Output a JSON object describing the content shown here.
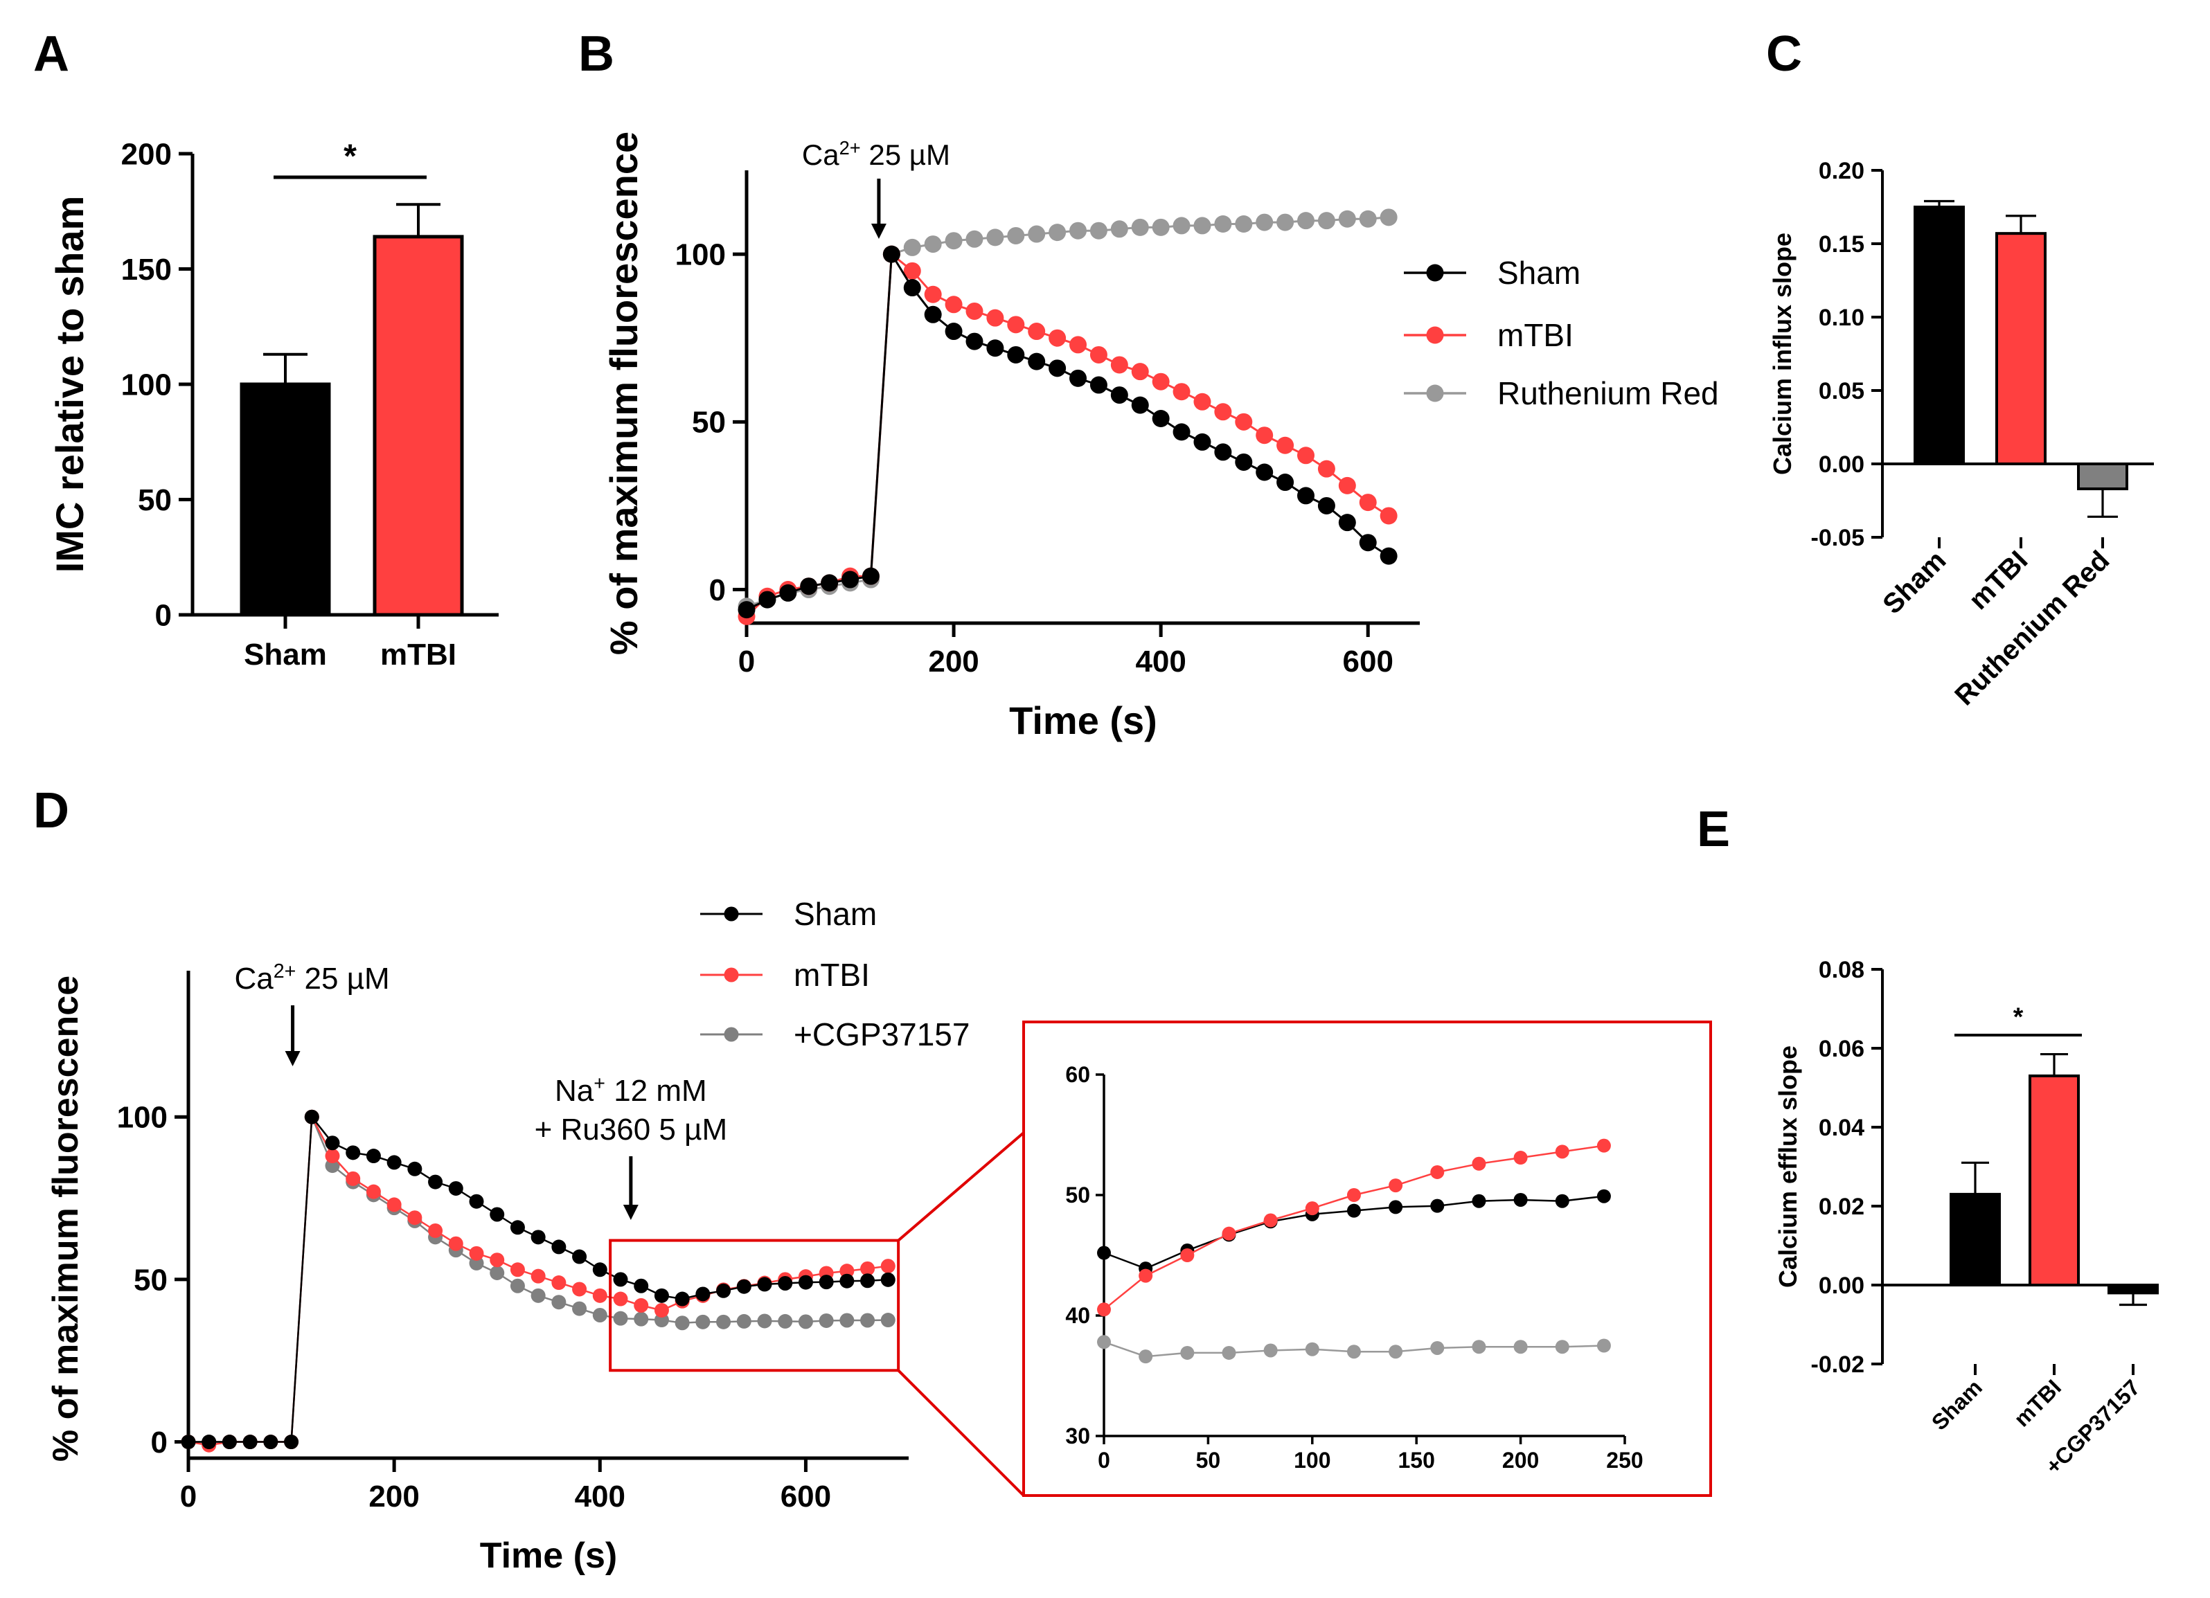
{
  "colors": {
    "sham": "#000000",
    "mtbi": "#ff4040",
    "grey": "#999999",
    "grey_dark": "#808080",
    "zoom": "#e00000"
  },
  "panels": [
    "A",
    "B",
    "C",
    "D",
    "E"
  ],
  "chart_data": [
    {
      "id": "A",
      "type": "bar",
      "ylabel": "IMC relative to sham",
      "categories": [
        "Sham",
        "mTBI"
      ],
      "values": [
        100,
        164
      ],
      "errors": [
        13,
        14
      ],
      "ylim": [
        0,
        200
      ],
      "yticks": [
        "0",
        "50",
        "100",
        "150",
        "200"
      ],
      "significance": "*"
    },
    {
      "id": "B",
      "type": "line",
      "xlabel": "Time (s)",
      "ylabel": "% of maximum fluorescence",
      "xlim": [
        0,
        650
      ],
      "ylim": [
        -10,
        125
      ],
      "xticks": [
        "0",
        "200",
        "400",
        "600"
      ],
      "yticks": [
        "0",
        "50",
        "100"
      ],
      "annotation": {
        "base": "Ca",
        "sup": "2+",
        "rest": " 25 µM",
        "x": 125
      },
      "series": [
        {
          "name": "Sham",
          "color_key": "sham",
          "x": [
            0,
            20,
            40,
            60,
            80,
            100,
            120,
            140,
            160,
            180,
            200,
            220,
            240,
            260,
            280,
            300,
            320,
            340,
            360,
            380,
            400,
            420,
            440,
            460,
            480,
            500,
            520,
            540,
            560,
            580,
            600,
            620
          ],
          "y": [
            -6,
            -3,
            -1,
            1,
            2,
            3,
            4,
            100,
            90,
            82,
            77,
            74,
            72,
            70,
            68,
            66,
            63,
            61,
            58,
            55,
            51,
            47,
            44,
            41,
            38,
            35,
            32,
            28,
            25,
            20,
            14,
            10
          ]
        },
        {
          "name": "mTBI",
          "color_key": "mtbi",
          "x": [
            0,
            20,
            40,
            60,
            80,
            100,
            120,
            140,
            160,
            180,
            200,
            220,
            240,
            260,
            280,
            300,
            320,
            340,
            360,
            380,
            400,
            420,
            440,
            460,
            480,
            500,
            520,
            540,
            560,
            580,
            600,
            620
          ],
          "y": [
            -8,
            -2,
            0,
            1,
            2,
            4,
            4,
            100,
            95,
            88,
            85,
            83,
            81,
            79,
            77,
            75,
            73,
            70,
            67,
            65,
            62,
            59,
            56,
            53,
            50,
            46,
            43,
            40,
            36,
            31,
            26,
            22
          ]
        },
        {
          "name": "Ruthenium Red",
          "color_key": "grey",
          "x": [
            0,
            20,
            40,
            60,
            80,
            100,
            120,
            140,
            160,
            180,
            200,
            220,
            240,
            260,
            280,
            300,
            320,
            340,
            360,
            380,
            400,
            420,
            440,
            460,
            480,
            500,
            520,
            540,
            560,
            580,
            600,
            620
          ],
          "y": [
            -5,
            -3,
            -1,
            0,
            1,
            2,
            3,
            100,
            102,
            103,
            104,
            104.5,
            105,
            105.5,
            106,
            106.5,
            107,
            107,
            107.5,
            108,
            108,
            108.5,
            108.5,
            109,
            109,
            109.5,
            109.5,
            110,
            110,
            110.5,
            110.5,
            111
          ]
        }
      ]
    },
    {
      "id": "C",
      "type": "bar",
      "ylabel": "Calcium influx slope",
      "categories": [
        "Sham",
        "mTBI",
        "Ruthenium Red"
      ],
      "values": [
        0.175,
        0.157,
        -0.017
      ],
      "errors": [
        0.004,
        0.012,
        0.019
      ],
      "ylim": [
        -0.05,
        0.2
      ],
      "yticks": [
        "-0.05",
        "0.00",
        "0.05",
        "0.10",
        "0.15",
        "0.20"
      ]
    },
    {
      "id": "D",
      "type": "line",
      "xlabel": "Time (s)",
      "ylabel": "% of maximum fluorescence",
      "xlim": [
        0,
        700
      ],
      "ylim": [
        -5,
        145
      ],
      "xticks": [
        "0",
        "200",
        "400",
        "600"
      ],
      "yticks": [
        "0",
        "50",
        "100"
      ],
      "annotations": [
        {
          "lines": [
            {
              "base": "Ca",
              "sup": "2+",
              "rest": " 25 µM"
            }
          ],
          "x": 100
        },
        {
          "lines": [
            {
              "base": "Na",
              "sup": "+",
              "rest": " 12 mM"
            },
            {
              "base": "+ Ru360 5 µM",
              "sup": "",
              "rest": ""
            }
          ],
          "x": 430
        }
      ],
      "series": [
        {
          "name": "Sham",
          "color_key": "sham",
          "x": [
            0,
            20,
            40,
            60,
            80,
            100,
            120,
            140,
            160,
            180,
            200,
            220,
            240,
            260,
            280,
            300,
            320,
            340,
            360,
            380,
            400,
            420,
            440,
            460,
            480,
            500,
            520,
            540,
            560,
            580,
            600,
            620,
            640,
            660,
            680
          ],
          "y": [
            0,
            0,
            0,
            0,
            0,
            0,
            100,
            92,
            89,
            88,
            86,
            84,
            80,
            78,
            74,
            70,
            66,
            63,
            60,
            57,
            53,
            50,
            48,
            45,
            44,
            45.5,
            46.5,
            47.8,
            48.5,
            48.8,
            49.1,
            49.2,
            49.5,
            49.6,
            49.9
          ]
        },
        {
          "name": "mTBI",
          "color_key": "mtbi",
          "x": [
            0,
            20,
            40,
            60,
            80,
            100,
            120,
            140,
            160,
            180,
            200,
            220,
            240,
            260,
            280,
            300,
            320,
            340,
            360,
            380,
            400,
            420,
            440,
            460,
            480,
            500,
            520,
            540,
            560,
            580,
            600,
            620,
            640,
            660,
            680
          ],
          "y": [
            0,
            -1,
            0,
            0,
            0,
            0,
            100,
            88,
            81,
            77,
            73,
            69,
            65,
            61,
            58,
            56,
            53,
            51,
            49,
            47,
            45,
            44,
            42,
            40.5,
            43.3,
            45,
            46.8,
            47.9,
            48.9,
            50,
            50.9,
            51.9,
            52.6,
            53.3,
            54.1
          ]
        },
        {
          "name": "+CGP37157",
          "color_key": "grey_dark",
          "x": [
            0,
            20,
            40,
            60,
            80,
            100,
            120,
            140,
            160,
            180,
            200,
            220,
            240,
            260,
            280,
            300,
            320,
            340,
            360,
            380,
            400,
            420,
            440,
            460,
            480,
            500,
            520,
            540,
            560,
            580,
            600,
            620,
            640,
            660,
            680
          ],
          "y": [
            0,
            0,
            0,
            0,
            0,
            0,
            100,
            85,
            80,
            76,
            72,
            68,
            63,
            59,
            55,
            52,
            48,
            45,
            43,
            41,
            39,
            38,
            37.8,
            37.5,
            36.6,
            36.9,
            36.9,
            37.1,
            37.2,
            37.1,
            37,
            37.3,
            37.4,
            37.4,
            37.5
          ]
        }
      ],
      "inset": {
        "xlim": [
          0,
          250
        ],
        "ylim": [
          30,
          60
        ],
        "xticks": [
          "0",
          "50",
          "100",
          "150",
          "200",
          "250"
        ],
        "yticks": [
          "30",
          "40",
          "50",
          "60"
        ],
        "x": [
          0,
          20,
          40,
          60,
          80,
          100,
          120,
          140,
          160,
          180,
          200,
          220,
          240
        ],
        "sham": [
          45.2,
          43.9,
          45.4,
          46.7,
          47.8,
          48.4,
          48.7,
          49.0,
          49.1,
          49.5,
          49.6,
          49.5,
          49.9
        ],
        "mtbi": [
          40.5,
          43.3,
          45.0,
          46.8,
          47.9,
          48.9,
          50.0,
          50.8,
          51.9,
          52.6,
          53.1,
          53.6,
          54.1
        ],
        "cgp": [
          37.8,
          36.6,
          36.9,
          36.9,
          37.1,
          37.2,
          37.0,
          37.0,
          37.3,
          37.4,
          37.4,
          37.4,
          37.5
        ]
      }
    },
    {
      "id": "E",
      "type": "bar",
      "ylabel": "Calcium efflux slope",
      "categories": [
        "Sham",
        "mTBI",
        "+CGP37157"
      ],
      "values": [
        0.023,
        0.053,
        -0.002
      ],
      "errors": [
        0.008,
        0.0055,
        0.003
      ],
      "ylim": [
        -0.02,
        0.08
      ],
      "yticks": [
        "-0.02",
        "0.00",
        "0.02",
        "0.04",
        "0.06",
        "0.08"
      ],
      "significance": "*"
    }
  ]
}
